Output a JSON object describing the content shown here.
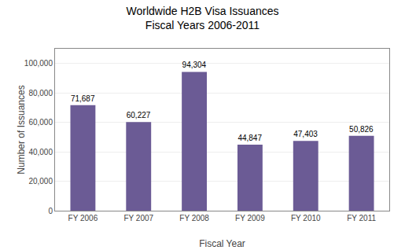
{
  "chart_data": {
    "type": "bar",
    "title": "Worldwide H2B Visa Issuances",
    "subtitle": "Fiscal Years 2006-2011",
    "x_label": "Fiscal Year",
    "y_label": "Number of Issuances",
    "categories": [
      "FY 2006",
      "FY 2007",
      "FY 2008",
      "FY 2009",
      "FY 2010",
      "FY 2011"
    ],
    "values": [
      71687,
      60227,
      94304,
      44847,
      47403,
      50826
    ],
    "value_labels": [
      "71,687",
      "60,227",
      "94,304",
      "44,847",
      "47,403",
      "50,826"
    ],
    "data_labels": true,
    "color": "#6b5b95",
    "ylim": [
      0,
      110000
    ],
    "yticks": [
      0,
      {
        "value": 20000,
        "label": "20,000"
      },
      {
        "value": 40000,
        "label": "40,000"
      },
      {
        "value": 60000,
        "label": "60,000"
      },
      {
        "value": 80000,
        "label": "80,000"
      },
      {
        "value": 100000,
        "label": "100,000"
      }
    ],
    "grid": true
  }
}
